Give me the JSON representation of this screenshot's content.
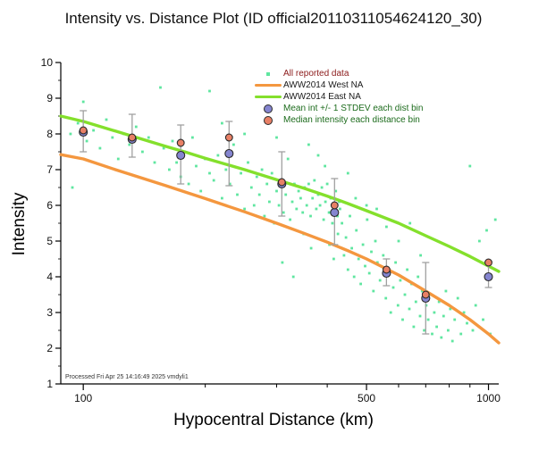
{
  "chart": {
    "title": "Intensity vs. Distance Plot (ID official20110311054624120_30)",
    "xlabel": "Hypocentral Distance (km)",
    "ylabel": "Intensity",
    "footer": "Processed Fri Apr 25 14:16:49 2025 vmdyli1"
  },
  "colors": {
    "scatter": "#5fe6a0",
    "west_line": "#f4973f",
    "east_line": "#84e02c",
    "mean_fill": "#8585d0",
    "median_fill": "#e88066",
    "marker_edge": "#2a2a2a",
    "error_bar": "#a0a0a0",
    "axis": "#000000",
    "tick_text": "#111111"
  },
  "chart_data": {
    "type": "scatter",
    "title": "Intensity vs. Distance Plot (ID official20110311054624120_30)",
    "xlabel": "Hypocentral Distance (km)",
    "ylabel": "Intensity",
    "x_scale": "log",
    "xlim": [
      88,
      1060
    ],
    "ylim": [
      1,
      10
    ],
    "x_ticks_labeled": [
      100,
      500,
      1000
    ],
    "x_ticks_minor": [
      200,
      300,
      400,
      600,
      700,
      800,
      900
    ],
    "y_ticks": [
      1,
      2,
      3,
      4,
      5,
      6,
      7,
      8,
      9,
      10
    ],
    "grid": false,
    "legend_position": "upper-center-right",
    "legend": [
      {
        "label": "All reported data",
        "marker": "scatter-dot",
        "text_color": "#8b1a1a"
      },
      {
        "label": "AWW2014 West NA",
        "marker": "west-line",
        "text_color": "#1a1a1a"
      },
      {
        "label": "AWW2014 East NA",
        "marker": "east-line",
        "text_color": "#1a1a1a"
      },
      {
        "label": "Mean int +/- 1 STDEV each dist bin",
        "marker": "mean-circle",
        "text_color": "#1c6b1c"
      },
      {
        "label": "Median intensity each distance bin",
        "marker": "median-circle",
        "text_color": "#1c6b1c"
      }
    ],
    "series": [
      {
        "name": "All reported data",
        "type": "scatter",
        "points": [
          [
            93,
            8.0
          ],
          [
            94,
            6.5
          ],
          [
            97,
            8.3
          ],
          [
            100,
            8.9
          ],
          [
            102,
            7.8
          ],
          [
            106,
            8.1
          ],
          [
            110,
            7.6
          ],
          [
            114,
            8.4
          ],
          [
            118,
            7.9
          ],
          [
            122,
            7.3
          ],
          [
            126,
            8.0
          ],
          [
            130,
            7.7
          ],
          [
            135,
            8.2
          ],
          [
            140,
            7.5
          ],
          [
            145,
            7.9
          ],
          [
            150,
            7.2
          ],
          [
            155,
            9.3
          ],
          [
            158,
            7.6
          ],
          [
            163,
            7.0
          ],
          [
            166,
            7.8
          ],
          [
            170,
            7.2
          ],
          [
            174,
            6.8
          ],
          [
            178,
            7.5
          ],
          [
            182,
            6.6
          ],
          [
            186,
            7.9
          ],
          [
            190,
            7.1
          ],
          [
            195,
            6.4
          ],
          [
            200,
            7.3
          ],
          [
            205,
            9.2
          ],
          [
            205,
            6.9
          ],
          [
            210,
            6.7
          ],
          [
            215,
            7.4
          ],
          [
            220,
            8.3
          ],
          [
            220,
            6.2
          ],
          [
            225,
            7.0
          ],
          [
            230,
            6.6
          ],
          [
            235,
            7.7
          ],
          [
            240,
            6.3
          ],
          [
            245,
            6.9
          ],
          [
            250,
            8.0
          ],
          [
            250,
            5.9
          ],
          [
            255,
            7.2
          ],
          [
            260,
            6.5
          ],
          [
            264,
            6.0
          ],
          [
            268,
            6.8
          ],
          [
            272,
            6.3
          ],
          [
            276,
            7.0
          ],
          [
            280,
            5.7
          ],
          [
            284,
            6.6
          ],
          [
            288,
            6.1
          ],
          [
            292,
            6.9
          ],
          [
            296,
            5.5
          ],
          [
            300,
            7.9
          ],
          [
            300,
            6.4
          ],
          [
            304,
            6.0
          ],
          [
            308,
            6.7
          ],
          [
            310,
            4.4
          ],
          [
            312,
            5.8
          ],
          [
            316,
            6.3
          ],
          [
            320,
            7.3
          ],
          [
            324,
            5.6
          ],
          [
            328,
            6.1
          ],
          [
            330,
            4.0
          ],
          [
            332,
            6.6
          ],
          [
            336,
            5.9
          ],
          [
            340,
            6.4
          ],
          [
            344,
            6.2
          ],
          [
            348,
            5.8
          ],
          [
            350,
            5.2
          ],
          [
            352,
            6.5
          ],
          [
            356,
            6.0
          ],
          [
            360,
            7.7
          ],
          [
            360,
            6.6
          ],
          [
            364,
            5.7
          ],
          [
            365,
            4.8
          ],
          [
            368,
            6.2
          ],
          [
            372,
            6.7
          ],
          [
            376,
            5.9
          ],
          [
            380,
            7.4
          ],
          [
            380,
            6.3
          ],
          [
            384,
            6.0
          ],
          [
            388,
            6.5
          ],
          [
            392,
            5.6
          ],
          [
            395,
            7.1
          ],
          [
            396,
            6.1
          ],
          [
            400,
            6.6
          ],
          [
            404,
            5.8
          ],
          [
            405,
            4.9
          ],
          [
            408,
            6.2
          ],
          [
            412,
            5.5
          ],
          [
            415,
            4.5
          ],
          [
            416,
            6.0
          ],
          [
            420,
            6.4
          ],
          [
            424,
            5.7
          ],
          [
            425,
            5.2
          ],
          [
            428,
            6.1
          ],
          [
            430,
            5.9
          ],
          [
            435,
            5.5
          ],
          [
            440,
            4.6
          ],
          [
            445,
            5.1
          ],
          [
            450,
            6.9
          ],
          [
            450,
            4.2
          ],
          [
            455,
            5.7
          ],
          [
            460,
            4.8
          ],
          [
            466,
            4.0
          ],
          [
            470,
            6.2
          ],
          [
            472,
            5.3
          ],
          [
            478,
            4.5
          ],
          [
            484,
            3.8
          ],
          [
            490,
            4.9
          ],
          [
            496,
            4.3
          ],
          [
            500,
            6.0
          ],
          [
            502,
            5.6
          ],
          [
            508,
            4.1
          ],
          [
            514,
            4.7
          ],
          [
            520,
            3.6
          ],
          [
            526,
            5.0
          ],
          [
            530,
            5.9
          ],
          [
            532,
            4.4
          ],
          [
            540,
            3.9
          ],
          [
            550,
            4.6
          ],
          [
            558,
            3.4
          ],
          [
            560,
            5.4
          ],
          [
            566,
            4.1
          ],
          [
            574,
            3.0
          ],
          [
            582,
            3.7
          ],
          [
            590,
            4.4
          ],
          [
            598,
            3.2
          ],
          [
            600,
            5.0
          ],
          [
            606,
            3.9
          ],
          [
            614,
            2.8
          ],
          [
            622,
            3.5
          ],
          [
            630,
            4.2
          ],
          [
            638,
            3.1
          ],
          [
            640,
            5.5
          ],
          [
            646,
            3.8
          ],
          [
            654,
            2.6
          ],
          [
            662,
            3.3
          ],
          [
            670,
            4.0
          ],
          [
            678,
            2.9
          ],
          [
            680,
            4.6
          ],
          [
            686,
            3.6
          ],
          [
            694,
            2.5
          ],
          [
            702,
            3.2
          ],
          [
            710,
            2.8
          ],
          [
            718,
            3.5
          ],
          [
            726,
            2.4
          ],
          [
            735,
            3.0
          ],
          [
            745,
            2.6
          ],
          [
            755,
            3.3
          ],
          [
            765,
            2.3
          ],
          [
            775,
            2.9
          ],
          [
            785,
            3.6
          ],
          [
            795,
            2.5
          ],
          [
            805,
            3.1
          ],
          [
            815,
            2.2
          ],
          [
            825,
            2.8
          ],
          [
            840,
            3.4
          ],
          [
            855,
            2.4
          ],
          [
            870,
            3.0
          ],
          [
            885,
            2.7
          ],
          [
            900,
            7.1
          ],
          [
            915,
            2.5
          ],
          [
            930,
            3.2
          ],
          [
            950,
            5.0
          ],
          [
            970,
            2.8
          ],
          [
            990,
            5.3
          ],
          [
            1010,
            2.4
          ],
          [
            1040,
            5.6
          ]
        ]
      },
      {
        "name": "AWW2014 West NA",
        "type": "line",
        "points": [
          [
            88,
            7.42
          ],
          [
            100,
            7.3
          ],
          [
            120,
            7.0
          ],
          [
            140,
            6.76
          ],
          [
            160,
            6.55
          ],
          [
            180,
            6.36
          ],
          [
            200,
            6.19
          ],
          [
            250,
            5.82
          ],
          [
            300,
            5.5
          ],
          [
            350,
            5.22
          ],
          [
            400,
            4.97
          ],
          [
            450,
            4.73
          ],
          [
            500,
            4.5
          ],
          [
            600,
            4.05
          ],
          [
            700,
            3.6
          ],
          [
            800,
            3.2
          ],
          [
            900,
            2.8
          ],
          [
            1000,
            2.4
          ],
          [
            1060,
            2.15
          ]
        ]
      },
      {
        "name": "AWW2014 East NA",
        "type": "line",
        "points": [
          [
            88,
            8.5
          ],
          [
            100,
            8.35
          ],
          [
            120,
            8.08
          ],
          [
            140,
            7.85
          ],
          [
            160,
            7.65
          ],
          [
            180,
            7.48
          ],
          [
            200,
            7.32
          ],
          [
            250,
            7.0
          ],
          [
            300,
            6.72
          ],
          [
            350,
            6.48
          ],
          [
            400,
            6.26
          ],
          [
            450,
            6.05
          ],
          [
            500,
            5.85
          ],
          [
            600,
            5.5
          ],
          [
            700,
            5.15
          ],
          [
            800,
            4.85
          ],
          [
            900,
            4.57
          ],
          [
            1000,
            4.3
          ],
          [
            1060,
            4.15
          ]
        ]
      },
      {
        "name": "Mean int +/- 1 STDEV each dist bin",
        "type": "errorbar",
        "points": [
          {
            "x": 100,
            "mean": 8.05,
            "lo": 7.5,
            "hi": 8.65
          },
          {
            "x": 132,
            "mean": 7.85,
            "lo": 7.35,
            "hi": 8.55
          },
          {
            "x": 174,
            "mean": 7.4,
            "lo": 6.6,
            "hi": 8.25
          },
          {
            "x": 229,
            "mean": 7.45,
            "lo": 6.55,
            "hi": 8.35
          },
          {
            "x": 309,
            "mean": 6.6,
            "lo": 5.7,
            "hi": 7.5
          },
          {
            "x": 417,
            "mean": 5.8,
            "lo": 4.9,
            "hi": 6.75
          },
          {
            "x": 560,
            "mean": 4.1,
            "lo": 3.75,
            "hi": 4.5
          },
          {
            "x": 700,
            "mean": 3.4,
            "lo": 2.4,
            "hi": 4.4
          },
          {
            "x": 1000,
            "mean": 4.0,
            "lo": 3.7,
            "hi": 4.35
          }
        ]
      },
      {
        "name": "Median intensity each distance bin",
        "type": "median",
        "points": [
          [
            100,
            8.1
          ],
          [
            132,
            7.9
          ],
          [
            174,
            7.75
          ],
          [
            229,
            7.9
          ],
          [
            309,
            6.65
          ],
          [
            417,
            6.0
          ],
          [
            560,
            4.2
          ],
          [
            700,
            3.5
          ],
          [
            1000,
            4.4
          ]
        ]
      }
    ]
  }
}
